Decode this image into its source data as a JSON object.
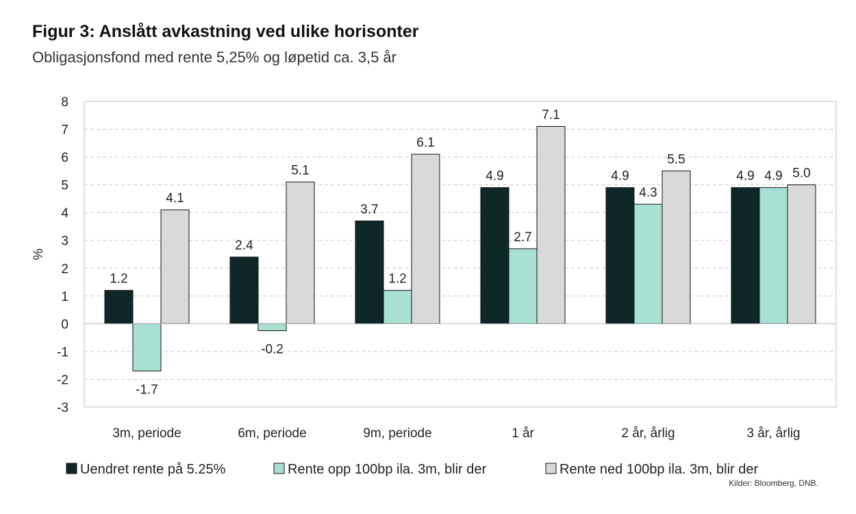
{
  "title": "Figur 3: Anslått avkastning ved ulike horisonter",
  "subtitle": "Obligasjonsfond med rente 5,25% og løpetid ca. 3,5 år",
  "source": "Kilder: Bloomberg, DNB.",
  "colors": {
    "series0": "#0e2727",
    "series1": "#a8e1d3",
    "series2": "#d9d9d9",
    "grid": "#c8c8c8",
    "frame": "#bfbfbf"
  },
  "chart_data": {
    "type": "bar",
    "title": "Figur 3: Anslått avkastning ved ulike horisonter",
    "subtitle": "Obligasjonsfond med rente 5,25% og løpetid ca. 3,5 år",
    "xlabel": "",
    "ylabel": "%",
    "ylim": [
      -3,
      8
    ],
    "yticks": [
      "-3",
      "-2",
      "-1",
      "0",
      "1",
      "2",
      "3",
      "4",
      "5",
      "6",
      "7",
      "8"
    ],
    "grid": true,
    "legend_position": "bottom",
    "categories": [
      "3m, periode",
      "6m, periode",
      "9m, periode",
      "1 år",
      "2 år, årlig",
      "3 år, årlig"
    ],
    "series": [
      {
        "name": "Uendret rente på 5.25%",
        "values": [
          1.2,
          2.4,
          3.7,
          4.9,
          4.9,
          4.9
        ],
        "labels": [
          "1.2",
          "2.4",
          "3.7",
          "4.9",
          "4.9",
          "4.9"
        ]
      },
      {
        "name": "Rente opp 100bp ila. 3m, blir der",
        "values": [
          -1.7,
          -0.25,
          1.2,
          2.7,
          4.3,
          4.9
        ],
        "labels": [
          "-1.7",
          "-0.2",
          "1.2",
          "2.7",
          "4.3",
          "4.9"
        ]
      },
      {
        "name": "Rente ned 100bp ila. 3m, blir der",
        "values": [
          4.1,
          5.1,
          6.1,
          7.1,
          5.5,
          5.0
        ],
        "labels": [
          "4.1",
          "5.1",
          "6.1",
          "7.1",
          "5.5",
          "5.0"
        ]
      }
    ]
  }
}
